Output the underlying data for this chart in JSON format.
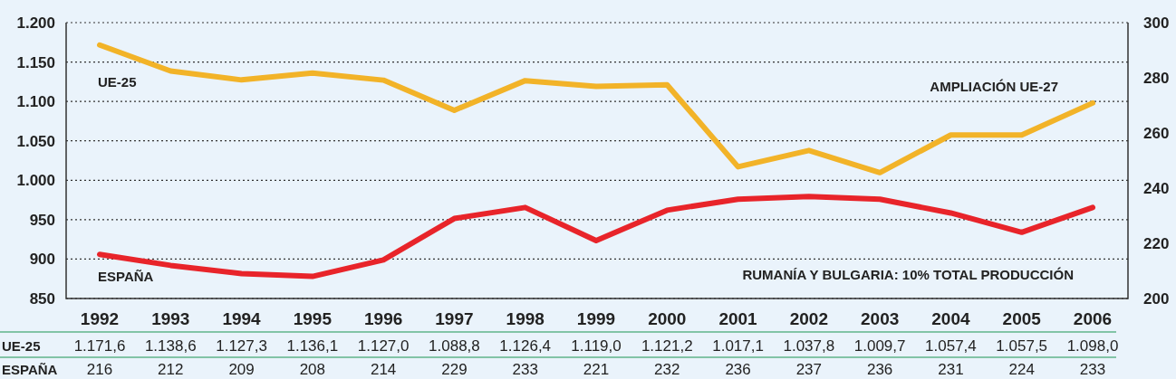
{
  "chart_data": {
    "type": "line",
    "categories": [
      "1992",
      "1993",
      "1994",
      "1995",
      "1996",
      "1997",
      "1998",
      "1999",
      "2000",
      "2001",
      "2002",
      "2003",
      "2004",
      "2005",
      "2006"
    ],
    "series": [
      {
        "name": "UE-25",
        "color": "#f2b328",
        "values": [
          1171.6,
          1138.6,
          1127.3,
          1136.1,
          1127.0,
          1088.8,
          1126.4,
          1119.0,
          1121.2,
          1017.1,
          1037.8,
          1009.7,
          1057.4,
          1057.5,
          1098.0
        ],
        "value_labels": [
          "1.171,6",
          "1.138,6",
          "1.127,3",
          "1.136,1",
          "1.127,0",
          "1.088,8",
          "1.126,4",
          "1.119,0",
          "1.121,2",
          "1.017,1",
          "1.037,8",
          "1.009,7",
          "1.057,4",
          "1.057,5",
          "1.098,0"
        ]
      },
      {
        "name": "ESPAÑA",
        "color": "#e8242a",
        "axis": "y2",
        "values": [
          216,
          212,
          209,
          208,
          214,
          229,
          233,
          221,
          232,
          236,
          237,
          236,
          231,
          224,
          233
        ],
        "value_labels": [
          "216",
          "212",
          "209",
          "208",
          "214",
          "229",
          "233",
          "221",
          "232",
          "236",
          "237",
          "236",
          "231",
          "224",
          "233"
        ]
      }
    ],
    "ylim": [
      850,
      1200
    ],
    "yticks": [
      {
        "value": 850,
        "label": "850"
      },
      {
        "value": 900,
        "label": "900"
      },
      {
        "value": 950,
        "label": "950"
      },
      {
        "value": 1000,
        "label": "1.000"
      },
      {
        "value": 1050,
        "label": "1.050"
      },
      {
        "value": 1100,
        "label": "1.100"
      },
      {
        "value": 1150,
        "label": "1.150"
      },
      {
        "value": 1200,
        "label": "1.200"
      }
    ],
    "y2lim": [
      200,
      300
    ],
    "y2ticks": [
      200,
      220,
      240,
      260,
      280,
      300
    ],
    "grid": "y",
    "line_style": "solid",
    "annotations": [
      "AMPLIACIÓN UE-27",
      "RUMANÍA Y BULGARIA: 10% TOTAL PRODUCCIÓN"
    ]
  }
}
